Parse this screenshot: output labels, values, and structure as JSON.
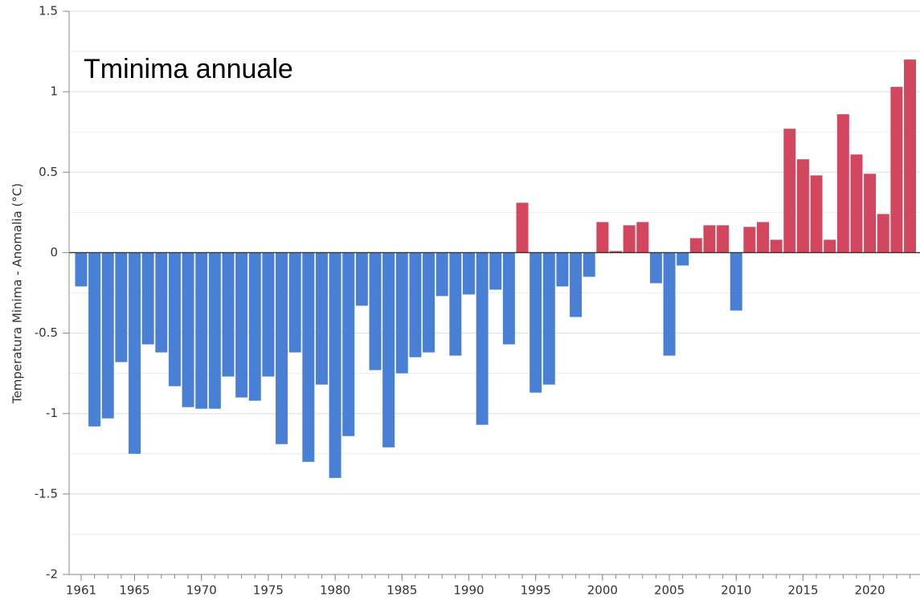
{
  "chart_data": {
    "type": "bar",
    "title": "Tminima annuale",
    "y_label": "Temperatura Minima - Anomalia (°C)",
    "x": [
      1961,
      1962,
      1963,
      1964,
      1965,
      1966,
      1967,
      1968,
      1969,
      1970,
      1971,
      1972,
      1973,
      1974,
      1975,
      1976,
      1977,
      1978,
      1979,
      1980,
      1981,
      1982,
      1983,
      1984,
      1985,
      1986,
      1987,
      1988,
      1989,
      1990,
      1991,
      1992,
      1993,
      1994,
      1995,
      1996,
      1997,
      1998,
      1999,
      2000,
      2001,
      2002,
      2003,
      2004,
      2005,
      2006,
      2007,
      2008,
      2009,
      2010,
      2011,
      2012,
      2013,
      2014,
      2015,
      2016,
      2017,
      2018,
      2019,
      2020,
      2021,
      2022,
      2023
    ],
    "values": [
      -0.21,
      -1.08,
      -1.03,
      -0.68,
      -1.25,
      -0.57,
      -0.62,
      -0.83,
      -0.96,
      -0.97,
      -0.97,
      -0.77,
      -0.9,
      -0.92,
      -0.77,
      -1.19,
      -0.62,
      -1.3,
      -0.82,
      -1.4,
      -1.14,
      -0.33,
      -0.73,
      -1.21,
      -0.75,
      -0.65,
      -0.62,
      -0.27,
      -0.64,
      -0.26,
      -1.07,
      -0.23,
      -0.57,
      0.31,
      -0.87,
      -0.82,
      -0.21,
      -0.4,
      -0.15,
      0.19,
      0.01,
      0.17,
      0.19,
      -0.19,
      -0.64,
      -0.08,
      0.09,
      0.17,
      0.17,
      -0.36,
      0.16,
      0.19,
      0.08,
      0.77,
      0.58,
      0.48,
      0.08,
      0.86,
      0.61,
      0.49,
      0.24,
      1.03,
      1.2
    ],
    "positive_color": "#d2475e",
    "negative_color": "#4a7fd6",
    "xlim": [
      1960.1,
      2023.75
    ],
    "xticks": [
      1961,
      1965,
      1970,
      1975,
      1980,
      1985,
      1990,
      1995,
      2000,
      2005,
      2010,
      2015,
      2020
    ],
    "ylim": [
      -2,
      1.5
    ],
    "yticks": [
      1.5,
      1,
      0.5,
      0,
      -0.5,
      -1,
      -1.5,
      -2
    ],
    "minor_yticks": [
      1.25,
      0.75,
      0.25,
      -0.25,
      -0.75,
      -1.25,
      -1.75
    ],
    "grid": true
  }
}
